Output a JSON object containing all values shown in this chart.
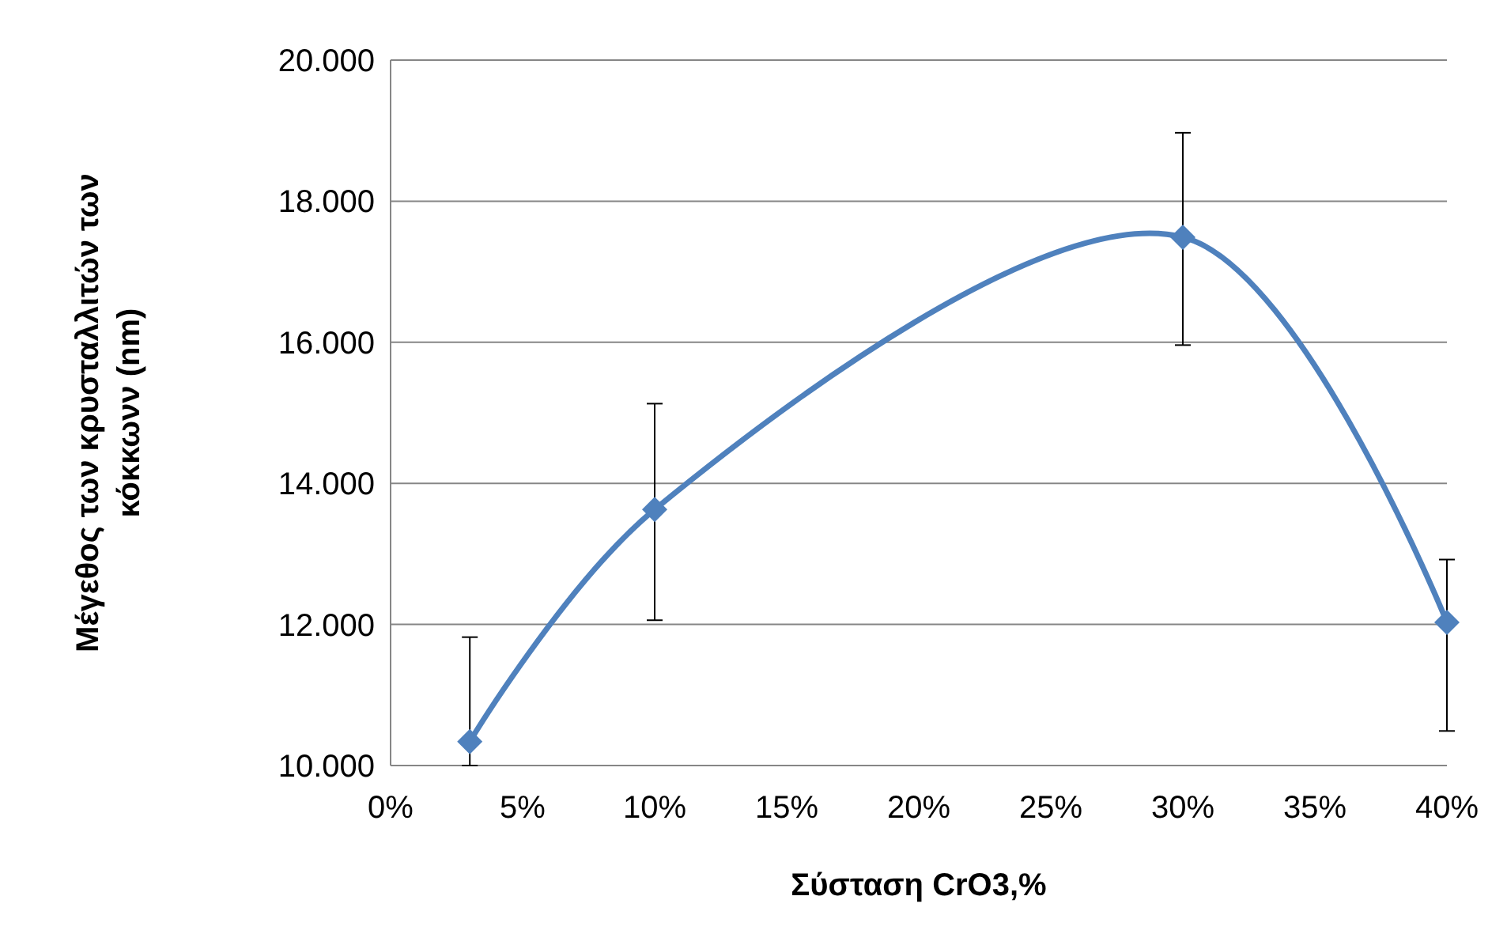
{
  "chart_data": {
    "type": "line",
    "xlabel": "Σύσταση CrO3,%",
    "ylabel": "Μέγεθος των κρυσταλλιτών των κόκκωνν (nm)",
    "x": [
      3,
      10,
      30,
      40
    ],
    "series": [
      {
        "color": "#4f81bd",
        "values": [
          10340,
          13630,
          17490,
          12030
        ],
        "errors": [
          [
            10000,
            11820
          ],
          [
            12060,
            15130
          ],
          [
            15960,
            18970
          ],
          [
            10490,
            12920
          ]
        ]
      }
    ],
    "xlim": [
      0,
      40
    ],
    "xticks": [
      {
        "value": 0,
        "label": "0%"
      },
      {
        "value": 5,
        "label": "5%"
      },
      {
        "value": 10,
        "label": "10%"
      },
      {
        "value": 15,
        "label": "15%"
      },
      {
        "value": 20,
        "label": "20%"
      },
      {
        "value": 25,
        "label": "25%"
      },
      {
        "value": 30,
        "label": "30%"
      },
      {
        "value": 35,
        "label": "35%"
      },
      {
        "value": 40,
        "label": "40%"
      }
    ],
    "ylim": [
      10000,
      20000
    ],
    "yticks": [
      {
        "value": 10000,
        "label": "10.000"
      },
      {
        "value": 12000,
        "label": "12.000"
      },
      {
        "value": 14000,
        "label": "14.000"
      },
      {
        "value": 16000,
        "label": "16.000"
      },
      {
        "value": 18000,
        "label": "18.000"
      },
      {
        "value": 20000,
        "label": "20.000"
      }
    ],
    "grid": "y",
    "marker": "diamond",
    "line_style": "solid"
  }
}
